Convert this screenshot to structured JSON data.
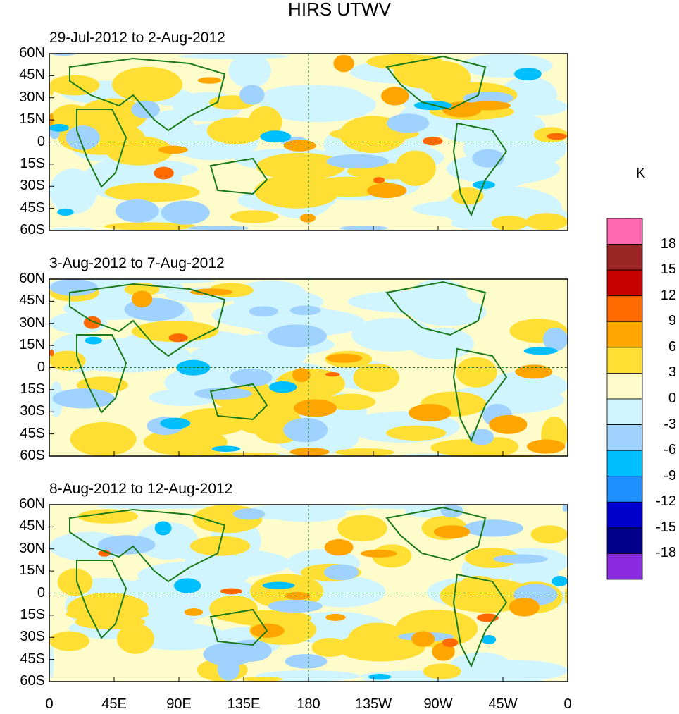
{
  "title": "HIRS UTWV",
  "panels": [
    {
      "label": "29-Jul-2012 to 2-Aug-2012",
      "seed": 3
    },
    {
      "label": "3-Aug-2012 to 7-Aug-2012",
      "seed": 11
    },
    {
      "label": "8-Aug-2012 to 12-Aug-2012",
      "seed": 29
    }
  ],
  "y_ticks": [
    "60N",
    "45N",
    "30N",
    "15N",
    "0",
    "15S",
    "30S",
    "45S",
    "60S"
  ],
  "x_ticks": [
    "0",
    "45E",
    "90E",
    "135E",
    "180",
    "135W",
    "90W",
    "45W",
    "0"
  ],
  "colorbar": {
    "units": "K",
    "labels": [
      "18",
      "15",
      "12",
      "9",
      "6",
      "3",
      "0",
      "-3",
      "-6",
      "-9",
      "-12",
      "-15",
      "-18"
    ],
    "colors": [
      "#ff69b4",
      "#9b2525",
      "#c80000",
      "#ff6a00",
      "#ffa500",
      "#ffdf33",
      "#fffccc",
      "#d1f5ff",
      "#a0d2ff",
      "#00bfff",
      "#1e90ff",
      "#0000cd",
      "#00008b",
      "#8a2be2"
    ]
  },
  "coast_color": "#1a7a1a"
}
